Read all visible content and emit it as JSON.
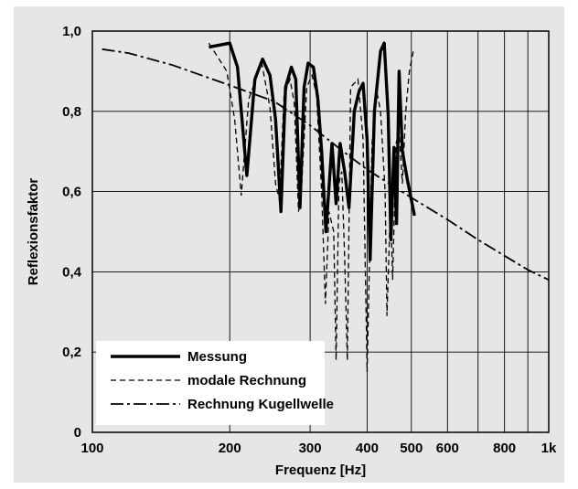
{
  "chart_data": {
    "type": "line",
    "xlabel": "Frequenz  [Hz]",
    "ylabel": "Reflexionsfaktor",
    "x_scale": "log",
    "xlim": [
      100,
      1000
    ],
    "ylim": [
      0,
      1.0
    ],
    "grid": true,
    "legend_position": "bottom-left",
    "x_ticks": [
      {
        "value": 100,
        "label": "100"
      },
      {
        "value": 200,
        "label": "200"
      },
      {
        "value": 300,
        "label": "300"
      },
      {
        "value": 400,
        "label": "400"
      },
      {
        "value": 500,
        "label": "500"
      },
      {
        "value": 600,
        "label": "600"
      },
      {
        "value": 800,
        "label": "800"
      },
      {
        "value": 1000,
        "label": "1k"
      }
    ],
    "x_minor_gridlines": [
      700,
      900
    ],
    "y_ticks": [
      {
        "value": 0,
        "label": "0"
      },
      {
        "value": 0.2,
        "label": "0,2"
      },
      {
        "value": 0.4,
        "label": "0,4"
      },
      {
        "value": 0.6,
        "label": "0,6"
      },
      {
        "value": 0.8,
        "label": "0,8"
      },
      {
        "value": 1.0,
        "label": "1,0"
      }
    ],
    "series": [
      {
        "name": "Messung",
        "style": "solid-thick",
        "points": [
          [
            180,
            0.96
          ],
          [
            200,
            0.97
          ],
          [
            208,
            0.91
          ],
          [
            218,
            0.64
          ],
          [
            227,
            0.88
          ],
          [
            236,
            0.93
          ],
          [
            245,
            0.89
          ],
          [
            252,
            0.78
          ],
          [
            259,
            0.55
          ],
          [
            265,
            0.86
          ],
          [
            273,
            0.91
          ],
          [
            279,
            0.88
          ],
          [
            285,
            0.56
          ],
          [
            291,
            0.86
          ],
          [
            297,
            0.92
          ],
          [
            305,
            0.91
          ],
          [
            312,
            0.83
          ],
          [
            318,
            0.7
          ],
          [
            325,
            0.5
          ],
          [
            335,
            0.72
          ],
          [
            342,
            0.57
          ],
          [
            349,
            0.72
          ],
          [
            357,
            0.65
          ],
          [
            365,
            0.56
          ],
          [
            375,
            0.8
          ],
          [
            384,
            0.85
          ],
          [
            392,
            0.87
          ],
          [
            400,
            0.73
          ],
          [
            406,
            0.43
          ],
          [
            415,
            0.8
          ],
          [
            428,
            0.95
          ],
          [
            436,
            0.97
          ],
          [
            445,
            0.79
          ],
          [
            451,
            0.48
          ],
          [
            458,
            0.71
          ],
          [
            464,
            0.52
          ],
          [
            470,
            0.9
          ],
          [
            478,
            0.7
          ],
          [
            490,
            0.63
          ],
          [
            508,
            0.54
          ]
        ]
      },
      {
        "name": "modale Rechnung",
        "style": "dashed",
        "points": [
          [
            180,
            0.97
          ],
          [
            197,
            0.9
          ],
          [
            205,
            0.78
          ],
          [
            212,
            0.59
          ],
          [
            220,
            0.83
          ],
          [
            235,
            0.92
          ],
          [
            245,
            0.81
          ],
          [
            252,
            0.62
          ],
          [
            257,
            0.58
          ],
          [
            263,
            0.84
          ],
          [
            271,
            0.88
          ],
          [
            277,
            0.82
          ],
          [
            283,
            0.55
          ],
          [
            287,
            0.6
          ],
          [
            295,
            0.86
          ],
          [
            303,
            0.89
          ],
          [
            310,
            0.84
          ],
          [
            318,
            0.6
          ],
          [
            324,
            0.32
          ],
          [
            330,
            0.55
          ],
          [
            338,
            0.5
          ],
          [
            342,
            0.18
          ],
          [
            347,
            0.62
          ],
          [
            352,
            0.65
          ],
          [
            357,
            0.44
          ],
          [
            362,
            0.18
          ],
          [
            368,
            0.86
          ],
          [
            382,
            0.88
          ],
          [
            392,
            0.73
          ],
          [
            400,
            0.15
          ],
          [
            410,
            0.72
          ],
          [
            420,
            0.85
          ],
          [
            428,
            0.8
          ],
          [
            438,
            0.6
          ],
          [
            442,
            0.29
          ],
          [
            450,
            0.57
          ],
          [
            455,
            0.38
          ],
          [
            463,
            0.72
          ],
          [
            470,
            0.75
          ],
          [
            478,
            0.62
          ],
          [
            486,
            0.8
          ],
          [
            495,
            0.9
          ],
          [
            505,
            0.95
          ]
        ]
      },
      {
        "name": "Rechnung Kugellwelle",
        "style": "dash-dot",
        "points": [
          [
            105,
            0.955
          ],
          [
            120,
            0.945
          ],
          [
            150,
            0.915
          ],
          [
            200,
            0.865
          ],
          [
            250,
            0.825
          ],
          [
            300,
            0.765
          ],
          [
            350,
            0.705
          ],
          [
            400,
            0.655
          ],
          [
            500,
            0.585
          ],
          [
            600,
            0.53
          ],
          [
            700,
            0.48
          ],
          [
            800,
            0.44
          ],
          [
            900,
            0.405
          ],
          [
            1000,
            0.38
          ]
        ]
      }
    ]
  }
}
